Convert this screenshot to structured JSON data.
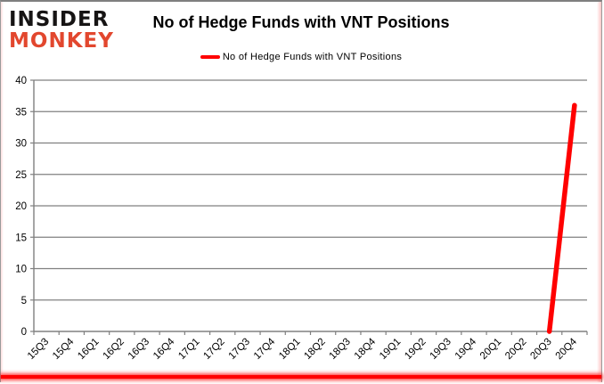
{
  "header": {
    "logo_line1": "INSIDER",
    "logo_line2": "MONKEY",
    "title": "No of Hedge Funds with VNT Positions"
  },
  "legend": {
    "label": "No of Hedge Funds with VNT Positions"
  },
  "colors": {
    "series": "#ff0000",
    "logo_black": "#161414",
    "logo_red": "#e2472e",
    "grid": "#808080",
    "axis": "#808080",
    "label_text": "#000000",
    "bottom_bar": "#ff0000"
  },
  "chart_data": {
    "type": "line",
    "title": "No of Hedge Funds with VNT Positions",
    "categories": [
      "15Q3",
      "15Q4",
      "16Q1",
      "16Q2",
      "16Q3",
      "16Q4",
      "17Q1",
      "17Q2",
      "17Q3",
      "17Q4",
      "18Q1",
      "18Q2",
      "18Q3",
      "18Q4",
      "19Q1",
      "19Q2",
      "19Q3",
      "19Q4",
      "20Q1",
      "20Q2",
      "20Q3",
      "20Q4"
    ],
    "series": [
      {
        "name": "No of Hedge Funds with VNT Positions",
        "values": [
          null,
          null,
          null,
          null,
          null,
          null,
          null,
          null,
          null,
          null,
          null,
          null,
          null,
          null,
          null,
          null,
          null,
          null,
          null,
          null,
          0,
          36
        ]
      }
    ],
    "xlabel": "",
    "ylabel": "",
    "ylim": [
      0,
      40
    ],
    "yticks": [
      0,
      5,
      10,
      15,
      20,
      25,
      30,
      35,
      40
    ],
    "grid": "horizontal",
    "legend_position": "top"
  }
}
